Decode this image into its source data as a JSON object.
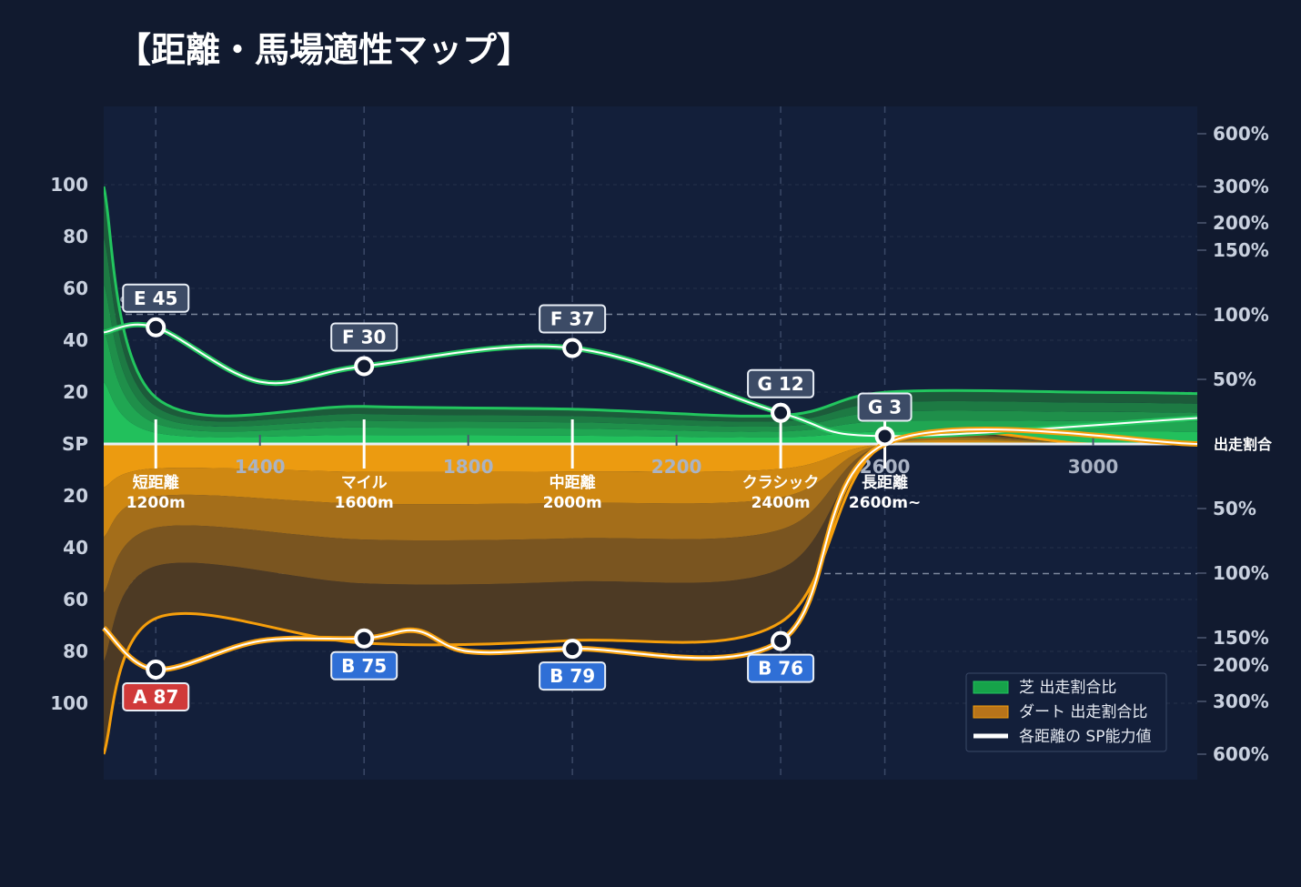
{
  "title": "【距離・馬場適性マップ】",
  "chart_data": {
    "type": "area",
    "xlim": [
      1100,
      3200
    ],
    "x_ticks": [
      1400,
      1800,
      2200,
      2600,
      3000
    ],
    "y_axis_left": {
      "label": "SP",
      "upper_ticks": [
        "100",
        "80",
        "60",
        "40",
        "20"
      ],
      "lower_ticks": [
        "20",
        "40",
        "60",
        "80",
        "100"
      ]
    },
    "y_axis_right": {
      "label": "出走割合",
      "upper_ticks": [
        "600%",
        "300%",
        "200%",
        "150%",
        "100%",
        "50%"
      ],
      "lower_ticks": [
        "50%",
        "100%",
        "150%",
        "200%",
        "300%",
        "600%"
      ]
    },
    "reference_lines": [
      {
        "label": "SP50",
        "half": "upper"
      },
      {
        "label": "SP50 / 100%",
        "half": "lower"
      }
    ],
    "categories": [
      {
        "name": "短距離",
        "distance": "1200m",
        "x": 1200
      },
      {
        "name": "マイル",
        "distance": "1600m",
        "x": 1600
      },
      {
        "name": "中距離",
        "distance": "2000m",
        "x": 2000
      },
      {
        "name": "クラシック",
        "distance": "2400m",
        "x": 2400
      },
      {
        "name": "長距離",
        "distance": "2600m~",
        "x": 2600
      }
    ],
    "series": [
      {
        "name": "芝 出走割合比",
        "surface": "turf",
        "x": [
          1100,
          1200,
          1600,
          2000,
          2400,
          2600,
          3000,
          3200
        ],
        "ratio_percent": [
          300,
          36,
          29,
          27,
          22,
          40,
          40,
          39
        ],
        "sp_ability": [
          {
            "x": 1100,
            "sp": 43
          },
          {
            "x": 1200,
            "grade": "E",
            "sp": 45
          },
          {
            "x": 1400,
            "sp": 24
          },
          {
            "x": 1600,
            "grade": "F",
            "sp": 30
          },
          {
            "x": 2000,
            "grade": "F",
            "sp": 37
          },
          {
            "x": 2400,
            "grade": "G",
            "sp": 12
          },
          {
            "x": 2600,
            "grade": "G",
            "sp": 3
          },
          {
            "x": 3200,
            "sp": 10
          }
        ]
      },
      {
        "name": "ダート 出走割合比",
        "surface": "dirt",
        "x": [
          1100,
          1200,
          1600,
          2000,
          2400,
          2600,
          3000,
          3200
        ],
        "ratio_percent": [
          600,
          135,
          160,
          155,
          138,
          0,
          0,
          0
        ],
        "sp_ability": [
          {
            "x": 1100,
            "sp": 71
          },
          {
            "x": 1200,
            "grade": "A",
            "sp": 87
          },
          {
            "x": 1400,
            "sp": 76
          },
          {
            "x": 1600,
            "grade": "B",
            "sp": 75
          },
          {
            "x": 1700,
            "sp": 72
          },
          {
            "x": 1800,
            "sp": 80
          },
          {
            "x": 2000,
            "grade": "B",
            "sp": 79
          },
          {
            "x": 2400,
            "grade": "B",
            "sp": 76
          },
          {
            "x": 2600,
            "sp": 0
          },
          {
            "x": 3200,
            "sp": 0
          }
        ]
      }
    ],
    "legend": {
      "position": "bottom-right",
      "items": [
        {
          "label": "芝 出走割合比",
          "color": "#16a34a"
        },
        {
          "label": "ダート 出走割合比",
          "color": "#b8741a"
        },
        {
          "label": "各距離の SP能力値",
          "color": "#ffffff"
        }
      ]
    },
    "grade_colors": {
      "A": "#d03a3a",
      "B": "#2f6fd6",
      "E": "#3c4b66",
      "F": "#3c4b66",
      "G": "#3c4b66"
    },
    "colors": {
      "turf": "#22c55e",
      "dirt": "#f59e0b",
      "background": "#111a2f",
      "plot": "#131f3a"
    },
    "grid": true
  }
}
